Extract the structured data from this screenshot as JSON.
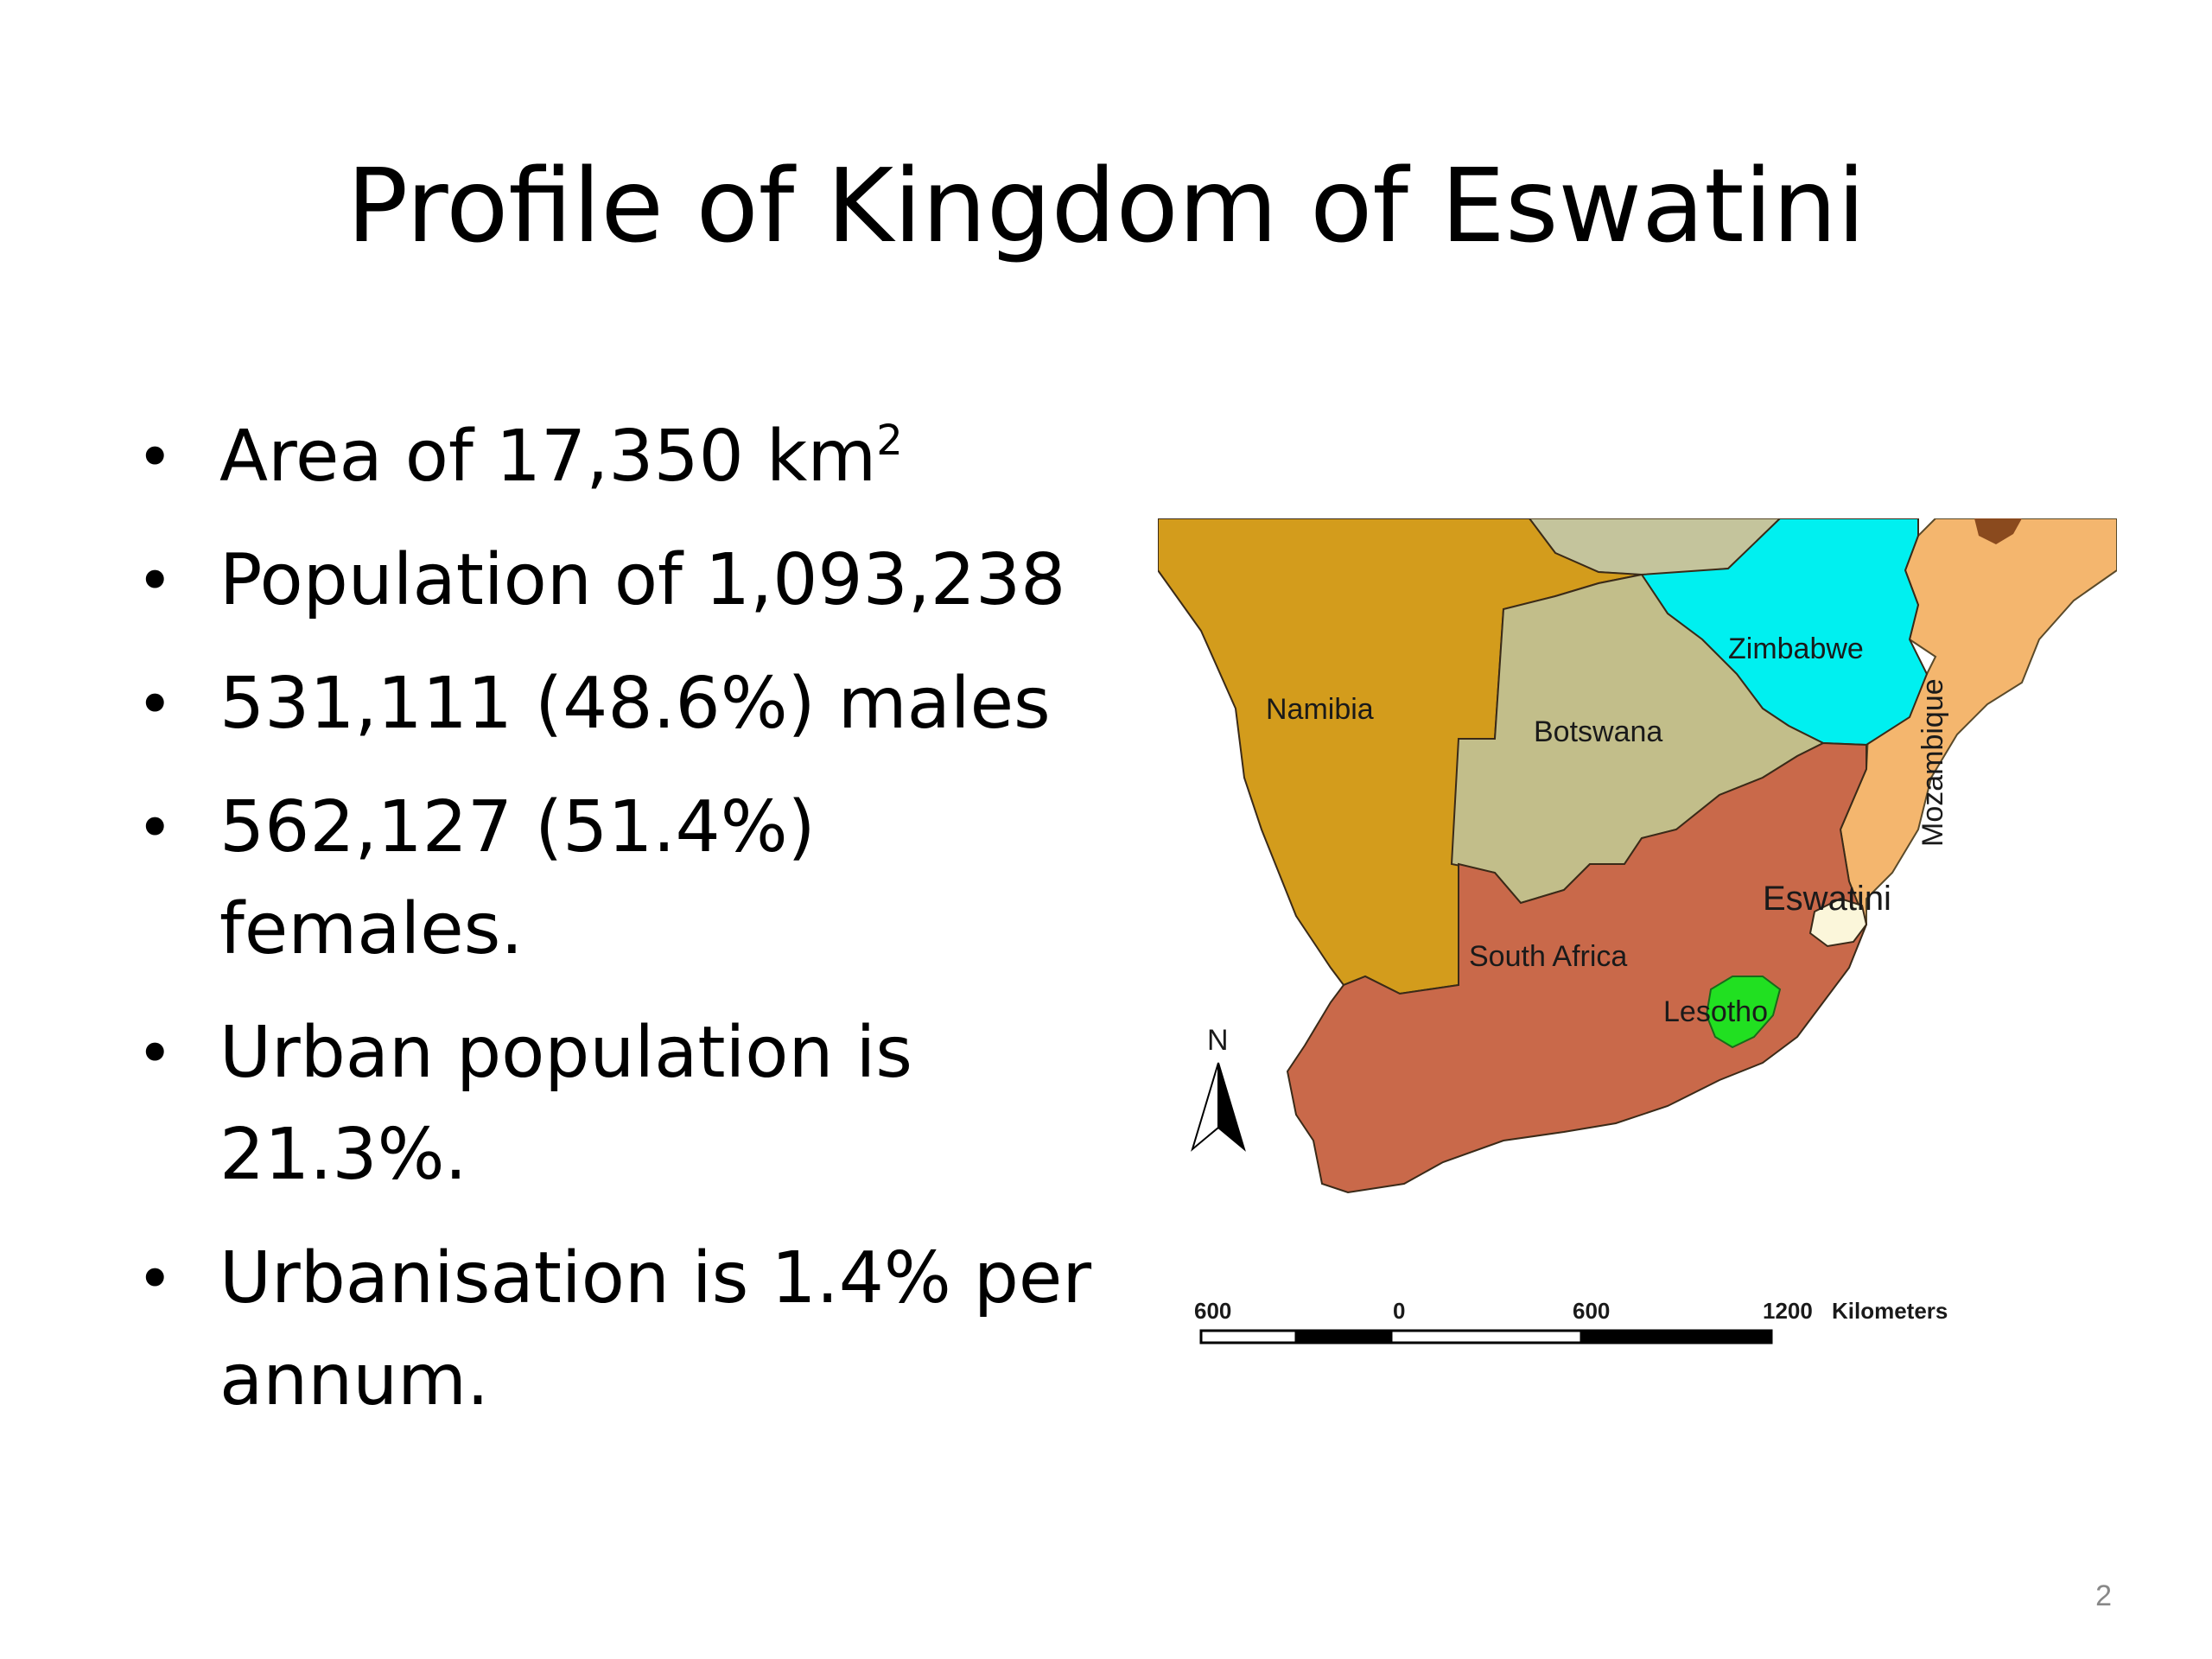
{
  "slide": {
    "title": "Profile of Kingdom of Eswatini",
    "page_number": "2"
  },
  "bullets": {
    "items": [
      {
        "text": "Area of 17,350 km",
        "sup": "2"
      },
      {
        "text": "Population of 1,093,238"
      },
      {
        "text": "531,111 (48.6%) males"
      },
      {
        "text": "562,127 (51.4%) females."
      },
      {
        "text": "Urban population is 21.3%."
      },
      {
        "text": "Urbanisation is 1.4% per annum."
      }
    ],
    "bullet_glyph": "•"
  },
  "map": {
    "labels": {
      "namibia": "Namibia",
      "botswana": "Botswana",
      "zimbabwe": "Zimbabwe",
      "mozambique": "Mozambique",
      "south_africa": "South Africa",
      "eswatini": "Eswatini",
      "lesotho": "Lesotho"
    },
    "north_label": "N",
    "scale": {
      "ticks": [
        "600",
        "0",
        "600",
        "1200"
      ],
      "unit": "Kilometers"
    },
    "colors": {
      "namibia": "#d39c1c",
      "botswana": "#c2be8a",
      "zimbabwe": "#00f0f0",
      "mozambique": "#f4b66e",
      "south_africa": "#c9694a",
      "eswatini": "#fbf6da",
      "lesotho": "#21e021",
      "north_region": "#c4c49c",
      "borders": "#3a2a18"
    }
  }
}
